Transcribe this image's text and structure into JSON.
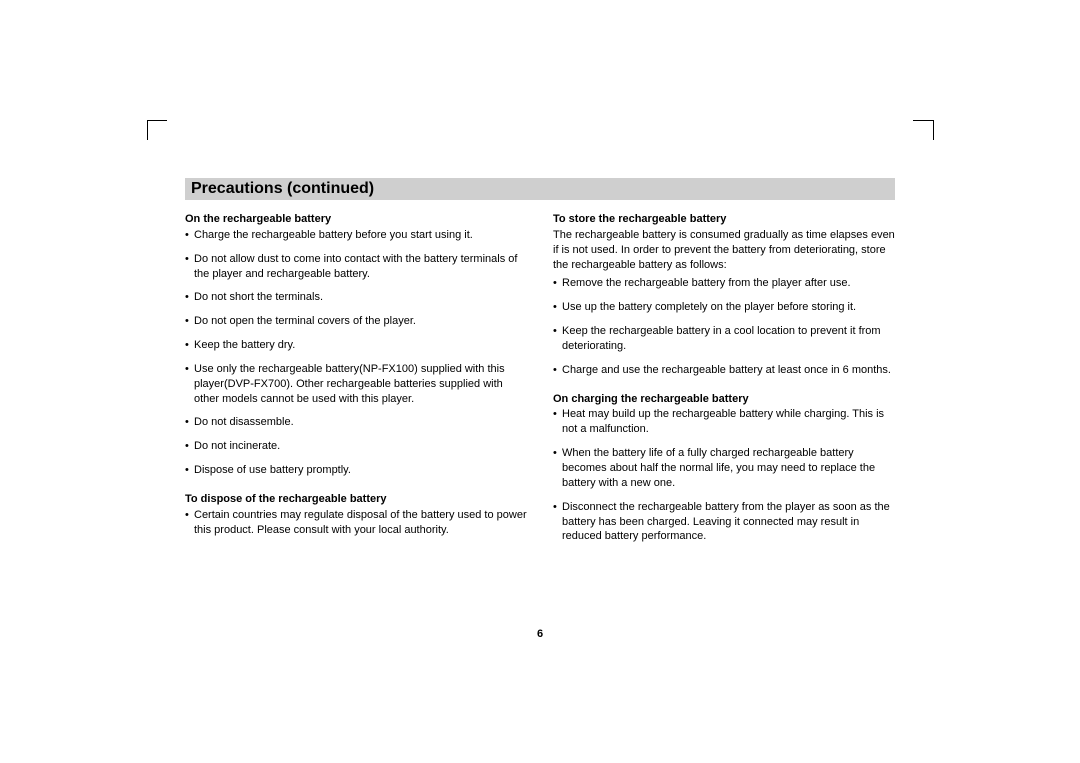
{
  "title": "Precautions (continued)",
  "pageNumber": "6",
  "left": {
    "section1": {
      "heading": "On the rechargeable battery",
      "items": [
        "Charge the rechargeable battery before you start using it.",
        "Do not allow dust to come into contact with the battery terminals of the player and rechargeable battery.",
        "Do not short the terminals.",
        "Do not open the terminal covers of the player.",
        "Keep the battery dry.",
        "Use only the rechargeable battery(NP-FX100) supplied with this player(DVP-FX700). Other rechargeable batteries supplied with other models cannot be used with this player.",
        "Do not disassemble.",
        "Do not incinerate.",
        "Dispose of use battery promptly."
      ]
    },
    "section2": {
      "heading": "To dispose of the rechargeable battery",
      "items": [
        "Certain countries may regulate disposal of the battery used to power this product. Please consult with your local authority."
      ]
    }
  },
  "right": {
    "section1": {
      "heading": "To store the rechargeable battery",
      "intro": "The rechargeable battery is consumed gradually as time elapses even if is not used. In order to prevent the battery from deteriorating, store the rechargeable battery as follows:",
      "items": [
        "Remove the rechargeable battery from the player after use.",
        "Use up the battery completely on the player before storing it.",
        "Keep the rechargeable battery in a cool location to prevent it from deteriorating.",
        "Charge and use the rechargeable battery at least once in 6 months."
      ]
    },
    "section2": {
      "heading": "On charging the rechargeable battery",
      "items": [
        "Heat may build up the rechargeable battery while charging. This is not a malfunction.",
        "When the battery life of a fully charged rechargeable battery becomes about half the normal life, you may need to replace the battery with a new one.",
        "Disconnect the rechargeable battery from the player as soon as the battery has been charged. Leaving it connected may result in reduced battery performance."
      ]
    }
  }
}
